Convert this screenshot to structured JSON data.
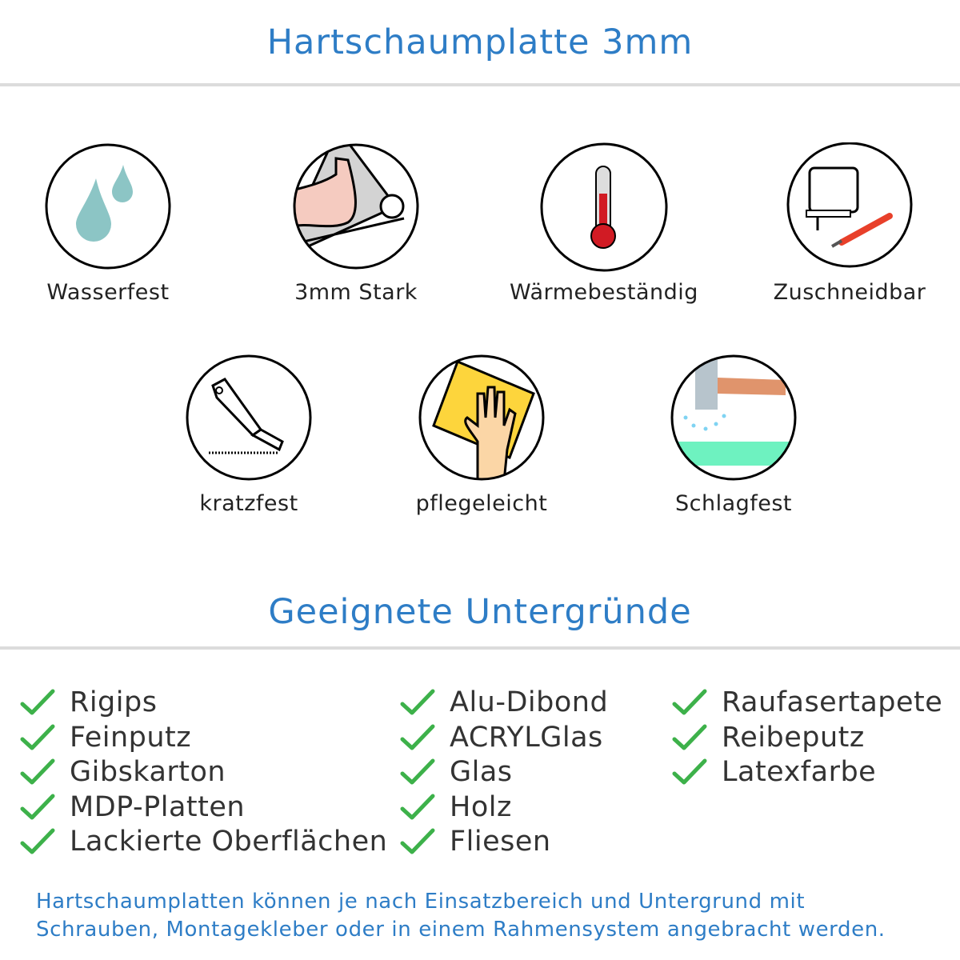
{
  "header": {
    "title": "Hartschaumplatte 3mm"
  },
  "features": [
    {
      "label": "Wasserfest",
      "icon": "water-drops-icon"
    },
    {
      "label": "3mm Stark",
      "icon": "strong-arm-icon"
    },
    {
      "label": "Wärmebeständig",
      "icon": "thermometer-icon"
    },
    {
      "label": "Zuschneidbar",
      "icon": "jigsaw-cutter-icon"
    },
    {
      "label": "kratzfest",
      "icon": "utility-knife-icon"
    },
    {
      "label": "pflegeleicht",
      "icon": "hand-cloth-icon"
    },
    {
      "label": "Schlagfest",
      "icon": "hammer-impact-icon"
    }
  ],
  "surfaces": {
    "title": "Geeignete Untergründe",
    "columns": [
      [
        "Rigips",
        "Feinputz",
        "Gibskarton",
        "MDP-Platten",
        "Lackierte Oberflächen"
      ],
      [
        "Alu-Dibond",
        "ACRYLGlas",
        "Glas",
        "Holz",
        "Fliesen"
      ],
      [
        "Raufasertapete",
        "Reibeputz",
        "Latexfarbe"
      ]
    ]
  },
  "footer": {
    "line1": "Hartschaumplatten können je nach Einsatzbereich und Untergrund mit",
    "line2": "Schrauben, Montagekleber oder in einem Rahmensystem angebracht werden."
  },
  "colors": {
    "accent": "#2e7dc6",
    "check": "#3db14a",
    "divider": "#dcdcdc"
  }
}
